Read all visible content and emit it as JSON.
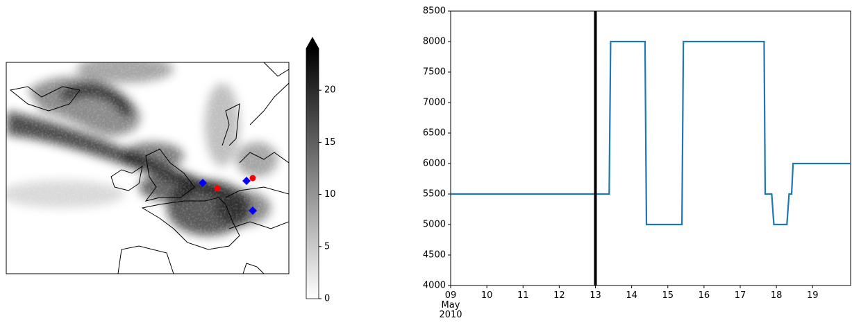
{
  "chart_data": [
    {
      "type": "colorbar",
      "zlim": [
        0,
        24
      ],
      "zticks": [
        0,
        5,
        10,
        15,
        20
      ],
      "colormap": "Greys"
    },
    {
      "type": "line",
      "x": [
        9,
        13.38,
        13.42,
        14.37,
        14.41,
        15.39,
        15.43,
        17.66,
        17.69,
        17.87,
        17.93,
        18.29,
        18.35,
        18.42,
        18.46,
        20.05
      ],
      "values": [
        5500,
        5500,
        8000,
        8000,
        5000,
        5000,
        8000,
        8000,
        5500,
        5500,
        5000,
        5000,
        5500,
        5500,
        6000,
        6000
      ],
      "color": "#1f77b4",
      "vline": 13,
      "vline_color": "#000000",
      "xlim": [
        9,
        20.05
      ],
      "xticks": [
        {
          "value": 9,
          "label": "09\nMay\n2010"
        },
        10,
        11,
        12,
        13,
        14,
        15,
        16,
        17,
        18,
        19
      ],
      "ylim": [
        4000,
        8500
      ],
      "yticks": [
        4000,
        4500,
        5000,
        5500,
        6000,
        6500,
        7000,
        7500,
        8000,
        8500
      ]
    }
  ]
}
